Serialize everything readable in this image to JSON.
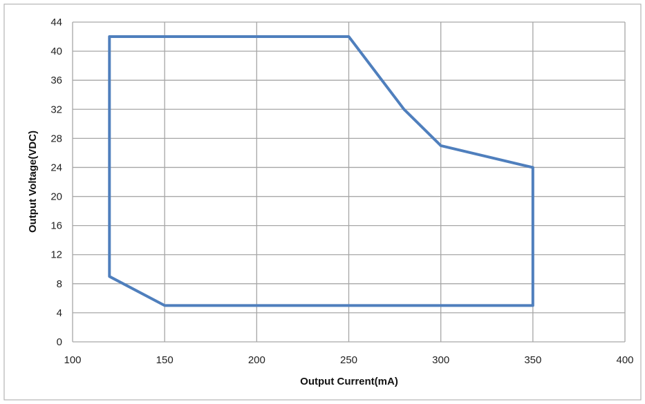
{
  "chart_data": {
    "type": "line",
    "title": "",
    "xlabel": "Output Current(mA)",
    "ylabel": "Output Voltage(VDC)",
    "xlim": [
      100,
      400
    ],
    "ylim": [
      0,
      44
    ],
    "x_ticks": [
      100,
      150,
      200,
      250,
      300,
      350,
      400
    ],
    "y_ticks": [
      0,
      4,
      8,
      12,
      16,
      20,
      24,
      28,
      32,
      36,
      40,
      44
    ],
    "grid": true,
    "legend": "none",
    "series": [
      {
        "color": "#4f7fbd",
        "points": [
          [
            120,
            42
          ],
          [
            250,
            42
          ],
          [
            280,
            32
          ],
          [
            300,
            27
          ],
          [
            350,
            24
          ],
          [
            350,
            5
          ],
          [
            150,
            5
          ],
          [
            120,
            9
          ],
          [
            120,
            42
          ]
        ]
      }
    ]
  },
  "colors": {
    "border": "#b3b3b3",
    "grid": "#a6a6a6",
    "series": "#4f7fbd"
  }
}
